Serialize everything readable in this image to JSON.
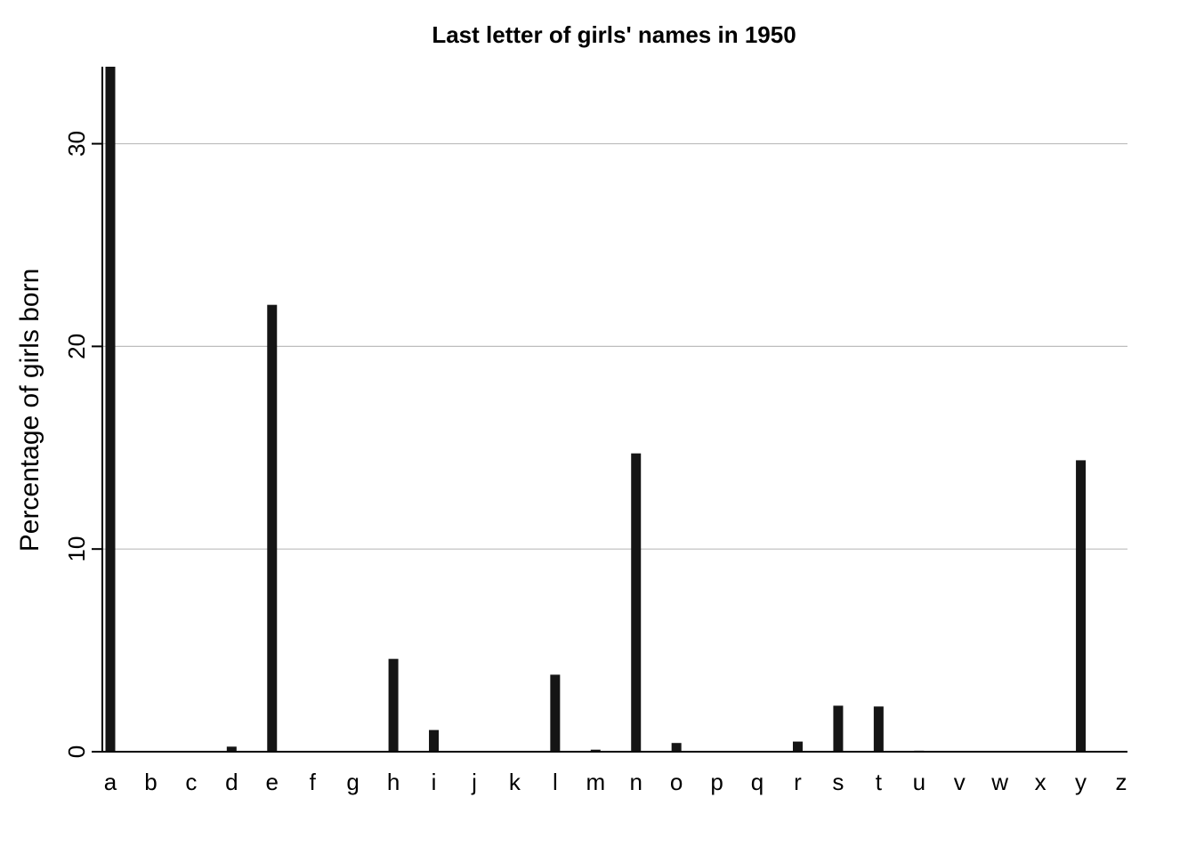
{
  "chart_data": {
    "type": "bar",
    "title": "Last letter of girls' names in 1950",
    "xlabel": "",
    "ylabel": "Percentage of girls born",
    "categories": [
      "a",
      "b",
      "c",
      "d",
      "e",
      "f",
      "g",
      "h",
      "i",
      "j",
      "k",
      "l",
      "m",
      "n",
      "o",
      "p",
      "q",
      "r",
      "s",
      "t",
      "u",
      "v",
      "w",
      "x",
      "y",
      "z"
    ],
    "values": [
      33.8,
      0.0,
      0.0,
      0.25,
      22.05,
      0.0,
      0.01,
      4.58,
      1.07,
      0.0,
      0.0,
      3.8,
      0.1,
      14.72,
      0.43,
      0.0,
      0.0,
      0.5,
      2.27,
      2.23,
      0.05,
      0.0,
      0.0,
      0.0,
      14.38,
      0.03
    ],
    "ylim": [
      0,
      33.8
    ],
    "yticks": [
      0,
      10,
      20,
      30
    ],
    "grid": true,
    "bar_color": "#151515",
    "grid_color": "#bdbdbd"
  }
}
